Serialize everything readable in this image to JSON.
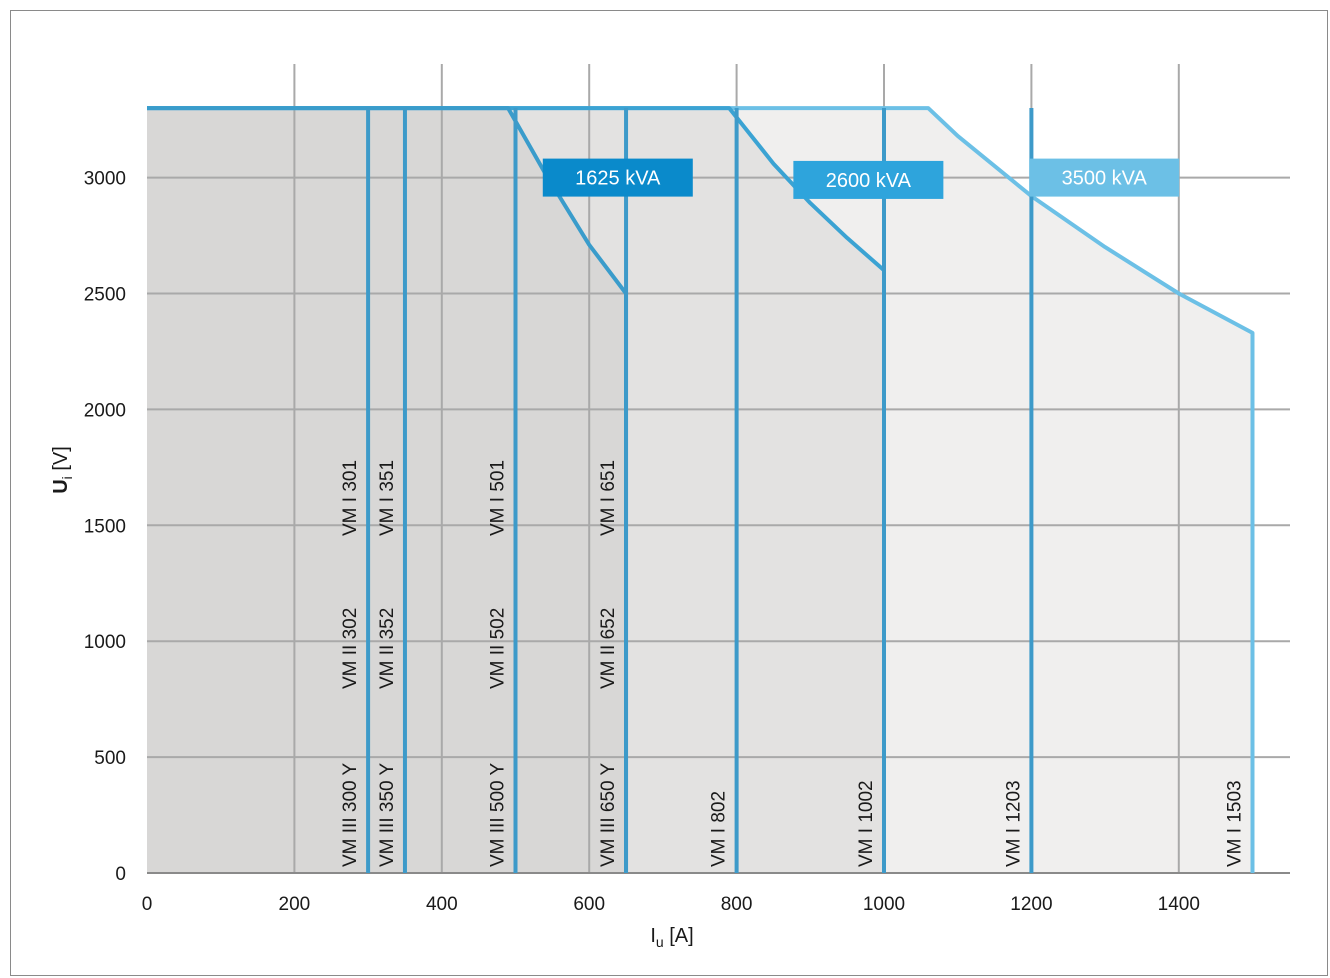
{
  "chart_data": {
    "type": "area",
    "xlabel": {
      "main": "I",
      "sub": "u",
      "unit": " [A]"
    },
    "ylabel": {
      "main": "U",
      "sub": "i",
      "unit": " [V]"
    },
    "xlim": [
      0,
      1550
    ],
    "ylim": [
      0,
      3550
    ],
    "xticks": [
      0,
      200,
      400,
      600,
      800,
      1000,
      1200,
      1400
    ],
    "yticks": [
      0,
      500,
      1000,
      1500,
      2000,
      2500,
      3000
    ],
    "x_tick_labels": [
      "0",
      "200",
      "400",
      "600",
      "800",
      "1000",
      "1200",
      "1400"
    ],
    "y_tick_labels": [
      "0",
      "500",
      "1000",
      "1500",
      "2000",
      "2500",
      "3000"
    ],
    "grid": true,
    "series": [
      {
        "name": "3500 kVA",
        "color": "#6cc0e6",
        "fill": "#f0efee",
        "points": [
          [
            0,
            3300
          ],
          [
            1060,
            3300
          ],
          [
            1100,
            3180
          ],
          [
            1200,
            2920
          ],
          [
            1300,
            2700
          ],
          [
            1400,
            2500
          ],
          [
            1500,
            2330
          ],
          [
            1500,
            0
          ]
        ]
      },
      {
        "name": "2600 kVA",
        "color": "#3ba3d3",
        "fill": "#e3e2e1",
        "points": [
          [
            0,
            3300
          ],
          [
            790,
            3300
          ],
          [
            850,
            3060
          ],
          [
            900,
            2890
          ],
          [
            950,
            2740
          ],
          [
            1000,
            2600
          ],
          [
            1000,
            0
          ]
        ]
      },
      {
        "name": "1625 kVA",
        "color": "#3a9ccb",
        "fill": "#d8d7d6",
        "points": [
          [
            0,
            3300
          ],
          [
            490,
            3300
          ],
          [
            540,
            3020
          ],
          [
            600,
            2710
          ],
          [
            650,
            2500
          ],
          [
            650,
            0
          ]
        ]
      }
    ],
    "kva_labels": [
      {
        "text": "1625 kVA",
        "x": 670,
        "y": 3000,
        "color": "#0a8acb"
      },
      {
        "text": "2600 kVA",
        "x": 1010,
        "y": 2990,
        "color": "#2ea4dc"
      },
      {
        "text": "3500 kVA",
        "x": 1330,
        "y": 3000,
        "color": "#6cc0e6"
      }
    ],
    "devices": [
      {
        "x": 300,
        "labels": [
          "VM III 300 Y",
          "VM II 302",
          "VM I 301"
        ]
      },
      {
        "x": 350,
        "labels": [
          "VM III 350 Y",
          "VM II 352",
          "VM I 351"
        ]
      },
      {
        "x": 500,
        "labels": [
          "VM III 500 Y",
          "VM II 502",
          "VM I 501"
        ]
      },
      {
        "x": 650,
        "labels": [
          "VM III 650 Y",
          "VM II 652",
          "VM I 651"
        ]
      },
      {
        "x": 800,
        "labels": [
          "VM I 802"
        ]
      },
      {
        "x": 1000,
        "labels": [
          "VM I 1002"
        ]
      },
      {
        "x": 1200,
        "labels": [
          "VM I 1203"
        ]
      },
      {
        "x": 1500,
        "labels": [
          "VM I 1503"
        ]
      }
    ],
    "device_line_color": "#3d9ac9",
    "gridline_color": "#a9a9a9"
  }
}
